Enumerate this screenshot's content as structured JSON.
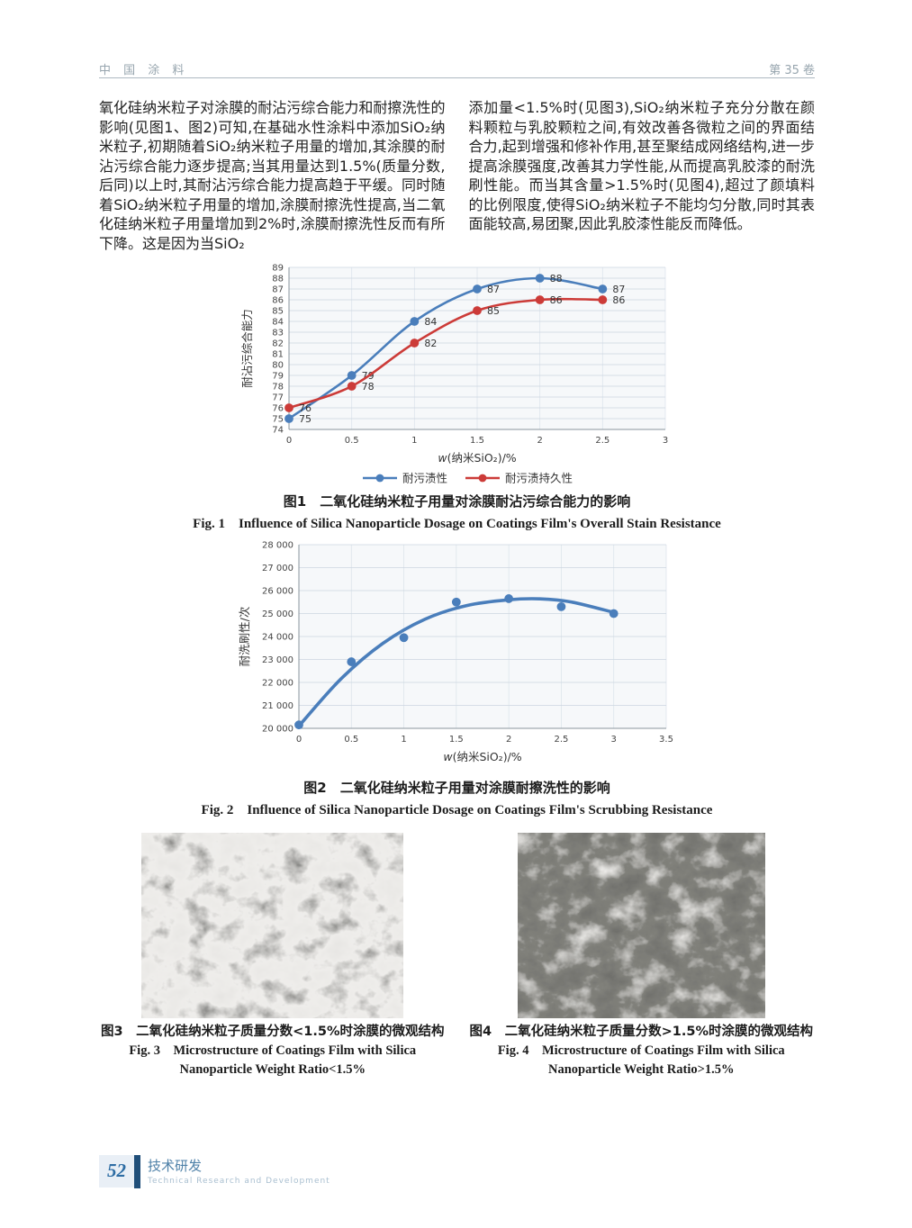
{
  "header": {
    "journal": "中 国 涂 料",
    "volume": "第 35 卷"
  },
  "body_text": {
    "left_column": "氧化硅纳米粒子对涂膜的耐沾污综合能力和耐擦洗性的影响(见图1、图2)可知,在基础水性涂料中添加SiO₂纳米粒子,初期随着SiO₂纳米粒子用量的增加,其涂膜的耐沾污综合能力逐步提高;当其用量达到1.5%(质量分数,后同)以上时,其耐沾污综合能力提高趋于平缓。同时随着SiO₂纳米粒子用量的增加,涂膜耐擦洗性提高,当二氧化硅纳米粒子用量增加到2%时,涂膜耐擦洗性反而有所下降。这是因为当SiO₂",
    "right_column": "添加量<1.5%时(见图3),SiO₂纳米粒子充分分散在颜料颗粒与乳胶颗粒之间,有效改善各微粒之间的界面结合力,起到增强和修补作用,甚至聚结成网络结构,进一步提高涂膜强度,改善其力学性能,从而提高乳胶漆的耐洗刷性能。而当其含量>1.5%时(见图4),超过了颜填料的比例限度,使得SiO₂纳米粒子不能均匀分散,同时其表面能较高,易团聚,因此乳胶漆性能反而降低。"
  },
  "chart_data": [
    {
      "type": "line",
      "x": [
        0,
        0.5,
        1,
        1.5,
        2,
        2.5
      ],
      "series": [
        {
          "name": "耐污渍性",
          "color": "#4a7ebb",
          "values": [
            75,
            79,
            84,
            87,
            88,
            87
          ]
        },
        {
          "name": "耐污渍持久性",
          "color": "#cc3b38",
          "values": [
            76,
            78,
            82,
            85,
            86,
            86
          ]
        }
      ],
      "xlabel": "w(纳米SiO₂)/%",
      "ylabel": "耐沾污综合能力",
      "xlim": [
        0,
        3
      ],
      "ylim": [
        74,
        89
      ],
      "xticks": [
        0,
        0.5,
        1,
        1.5,
        2,
        2.5,
        3
      ],
      "yticks": [
        74,
        75,
        76,
        77,
        78,
        79,
        80,
        81,
        82,
        83,
        84,
        85,
        86,
        87,
        88,
        89
      ],
      "grid": true,
      "show_labels": true,
      "legend": true,
      "legend_position": "bottom"
    },
    {
      "type": "scatter",
      "x": [
        0,
        0.5,
        1,
        1.5,
        2,
        2.5,
        3
      ],
      "series": [
        {
          "name": "耐洗刷性",
          "color": "#4a7ebb",
          "line": false,
          "values": [
            20150,
            22900,
            23950,
            25500,
            25650,
            25300,
            25000
          ]
        }
      ],
      "trend": [
        [
          0,
          20100
        ],
        [
          0.4,
          22150
        ],
        [
          0.8,
          23700
        ],
        [
          1.2,
          24750
        ],
        [
          1.6,
          25350
        ],
        [
          2.0,
          25600
        ],
        [
          2.3,
          25640
        ],
        [
          2.6,
          25500
        ],
        [
          3.0,
          25050
        ]
      ],
      "xlabel": "w(纳米SiO₂)/%",
      "ylabel": "耐洗刷性/次",
      "xlim": [
        0,
        3.5
      ],
      "ylim": [
        20000,
        28000
      ],
      "xticks": [
        0,
        0.5,
        1,
        1.5,
        2,
        2.5,
        3,
        3.5
      ],
      "yticks": [
        20000,
        21000,
        22000,
        23000,
        24000,
        25000,
        26000,
        27000,
        28000
      ],
      "yfmt": "thousands",
      "grid": true,
      "show_labels": false,
      "legend": false
    }
  ],
  "captions": {
    "fig1_cn": "图1　二氧化硅纳米粒子用量对涂膜耐沾污综合能力的影响",
    "fig1_en": "Fig. 1　Influence of Silica Nanoparticle Dosage on Coatings Film's Overall Stain Resistance",
    "fig2_cn": "图2　二氧化硅纳米粒子用量对涂膜耐擦洗性的影响",
    "fig2_en": "Fig. 2　Influence of Silica Nanoparticle Dosage on Coatings Film's Scrubbing Resistance",
    "fig3_cn": "图3　二氧化硅纳米粒子质量分数<1.5%时涂膜的微观结构",
    "fig3_en1": "Fig. 3　Microstructure of Coatings Film with Silica",
    "fig3_en2": "Nanoparticle Weight Ratio<1.5%",
    "fig4_cn": "图4　二氧化硅纳米粒子质量分数>1.5%时涂膜的微观结构",
    "fig4_en1": "Fig. 4　Microstructure of Coatings Film with Silica",
    "fig4_en2": "Nanoparticle Weight Ratio>1.5%"
  },
  "footer": {
    "page_number": "52",
    "section_cn": "技术研发",
    "section_en": "Technical Research and Development"
  },
  "colors": {
    "series_blue": "#4a7ebb",
    "series_red": "#cc3b38",
    "footer_blue": "#1f4e79"
  }
}
